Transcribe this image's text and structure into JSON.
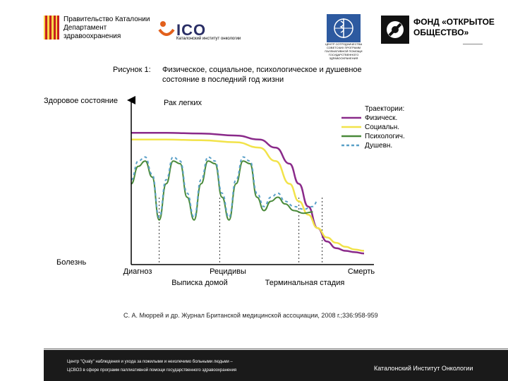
{
  "header": {
    "gov_text": "Правительство Каталонии\nДепартамент\nздравоохранения",
    "ico_logo": "ICO",
    "ico_subtitle": "Каталонский институт онкологии",
    "who_text": "ЦЕНТР СОТРУДНИЧЕСТВА\nСОВЕТСКИХ ПРОГРАММ\nПАЛЛИАТИВНОЙ ПОМОЩИ\nГОСУДАРСТВЕННОГО\nЗДРАВООХРАНЕНИЯ",
    "osf_text": "ФОНД «ОТКРЫТОЕ\nОБЩЕСТВО»"
  },
  "figure": {
    "label": "Рисунок 1:",
    "title_line1": "Физическое, социальное, психологическое и душевное",
    "title_line2": "состояние в последний год жизни"
  },
  "chart_data": {
    "type": "line",
    "title": "Рак легких",
    "ylabel_top": "Здоровое состояние",
    "ylabel_bottom": "Болезнь",
    "legend_title": "Траектории:",
    "legend_position": "top-right",
    "x_labels": [
      {
        "text": "Диагноз",
        "x": 0.12
      },
      {
        "text": "Выписка домой",
        "x": 0.38
      },
      {
        "text": "Рецидивы",
        "x": 0.43
      },
      {
        "text": "Терминальная стадия",
        "x": 0.78
      },
      {
        "text": "Смерть",
        "x": 1.0
      }
    ],
    "markers_x": [
      0.12,
      0.38,
      0.72,
      0.82
    ],
    "ylim": [
      0,
      1
    ],
    "series": [
      {
        "name": "Физическ.",
        "color": "#8a2a8a",
        "style": "solid",
        "x": [
          0.0,
          0.15,
          0.3,
          0.45,
          0.55,
          0.62,
          0.68,
          0.72,
          0.76,
          0.8,
          0.84,
          0.88,
          0.92,
          0.96,
          1.0
        ],
        "y": [
          0.93,
          0.93,
          0.925,
          0.91,
          0.88,
          0.82,
          0.7,
          0.55,
          0.38,
          0.22,
          0.12,
          0.07,
          0.05,
          0.04,
          0.03
        ]
      },
      {
        "name": "Социальн.",
        "color": "#f2e34a",
        "style": "solid",
        "x": [
          0.0,
          0.15,
          0.3,
          0.45,
          0.55,
          0.62,
          0.68,
          0.72,
          0.76,
          0.8,
          0.84,
          0.88,
          0.92,
          0.96,
          1.0
        ],
        "y": [
          0.88,
          0.88,
          0.875,
          0.86,
          0.82,
          0.72,
          0.55,
          0.42,
          0.32,
          0.22,
          0.15,
          0.11,
          0.08,
          0.06,
          0.05
        ]
      },
      {
        "name": "Психологич.",
        "color": "#4a8a3a",
        "style": "solid",
        "x": [
          0.0,
          0.03,
          0.06,
          0.09,
          0.12,
          0.15,
          0.18,
          0.21,
          0.24,
          0.27,
          0.3,
          0.33,
          0.36,
          0.39,
          0.42,
          0.45,
          0.48,
          0.51,
          0.54,
          0.57,
          0.6,
          0.63,
          0.66,
          0.7,
          0.74,
          0.78
        ],
        "y": [
          0.55,
          0.68,
          0.72,
          0.6,
          0.28,
          0.55,
          0.72,
          0.7,
          0.45,
          0.28,
          0.55,
          0.72,
          0.7,
          0.45,
          0.28,
          0.55,
          0.72,
          0.7,
          0.45,
          0.35,
          0.42,
          0.45,
          0.4,
          0.35,
          0.33,
          0.34
        ]
      },
      {
        "name": "Душевн.",
        "color": "#5aa0c8",
        "style": "dashed",
        "x": [
          0.0,
          0.03,
          0.06,
          0.09,
          0.12,
          0.15,
          0.18,
          0.21,
          0.24,
          0.27,
          0.3,
          0.33,
          0.36,
          0.39,
          0.42,
          0.45,
          0.48,
          0.51,
          0.54,
          0.57,
          0.6,
          0.63,
          0.66,
          0.7,
          0.74,
          0.78,
          0.8
        ],
        "y": [
          0.58,
          0.72,
          0.75,
          0.62,
          0.3,
          0.58,
          0.75,
          0.72,
          0.48,
          0.3,
          0.58,
          0.75,
          0.72,
          0.48,
          0.3,
          0.58,
          0.75,
          0.72,
          0.48,
          0.38,
          0.45,
          0.48,
          0.42,
          0.38,
          0.36,
          0.38,
          0.42
        ]
      }
    ]
  },
  "citation": "С. А. Мюррей и др. Журнал Британской медицинской ассоциации, 2008 г.;336:958-959",
  "footer": {
    "left_line1": "Центр \"Qualy\" наблюдения и ухода за пожилыми и неизлечимо больными людьми –",
    "left_line2": "ЦСВОЗ в сфере программ паллиативной помощи государственного здравоохранения",
    "right": "Каталонский Институт Онкологии"
  }
}
